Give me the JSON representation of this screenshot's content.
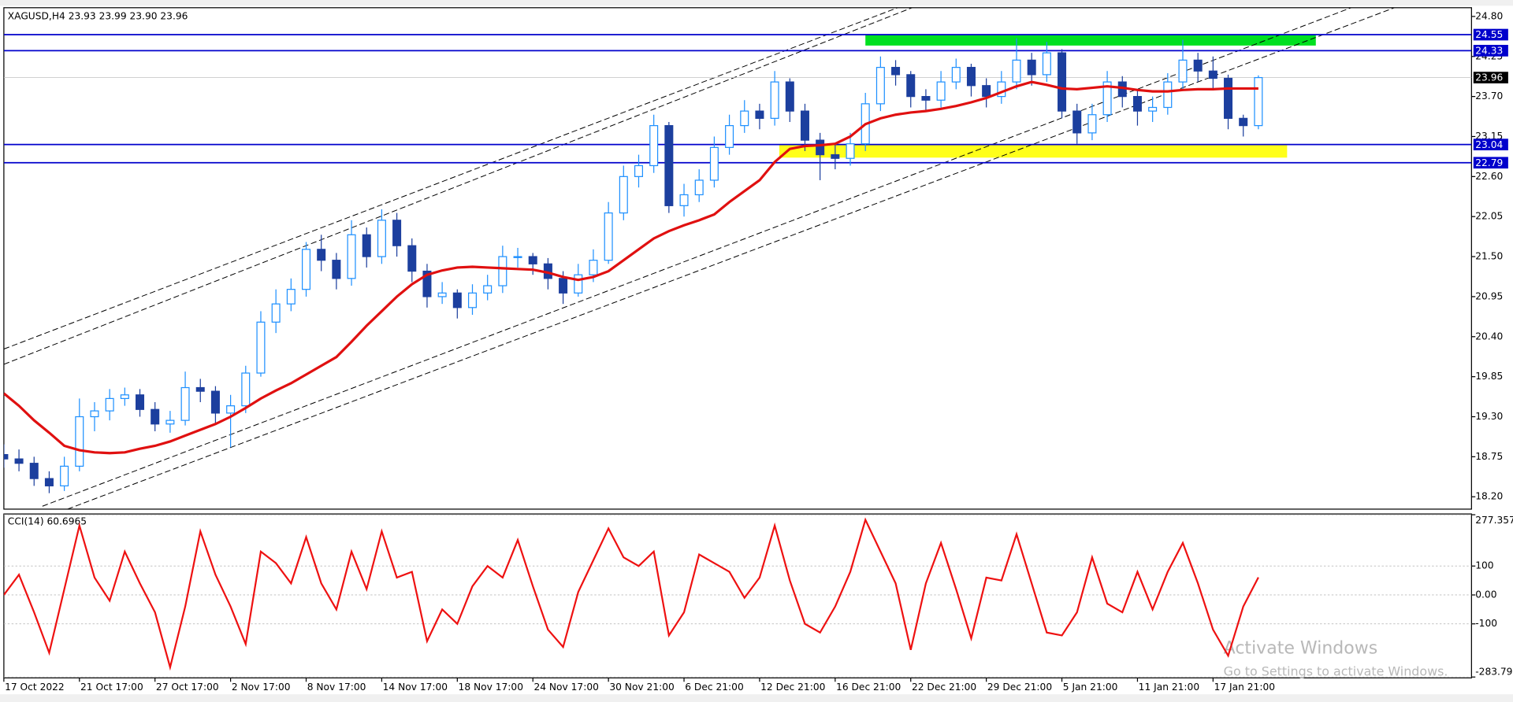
{
  "chart_data": [
    {
      "type": "candlestick",
      "title": "XAGUSD,H4  23.93 23.99 23.90 23.96",
      "up_color": "#1e90ff",
      "down_color": "#1c3f9e",
      "xlim": [
        0,
        97.1
      ],
      "ylim": [
        18.03,
        24.92
      ],
      "xticks": [
        {
          "value": 0,
          "label": "17 Oct 2022"
        },
        {
          "value": 5,
          "label": "21 Oct 17:00"
        },
        {
          "value": 10,
          "label": "27 Oct 17:00"
        },
        {
          "value": 15,
          "label": "2 Nov 17:00"
        },
        {
          "value": 20,
          "label": "8 Nov 17:00"
        },
        {
          "value": 25,
          "label": "14 Nov 17:00"
        },
        {
          "value": 30,
          "label": "18 Nov 17:00"
        },
        {
          "value": 35,
          "label": "24 Nov 17:00"
        },
        {
          "value": 40,
          "label": "30 Nov 21:00"
        },
        {
          "value": 45,
          "label": "6 Dec 21:00"
        },
        {
          "value": 50,
          "label": "12 Dec 21:00"
        },
        {
          "value": 55,
          "label": "16 Dec 21:00"
        },
        {
          "value": 60,
          "label": "22 Dec 21:00"
        },
        {
          "value": 65,
          "label": "29 Dec 21:00"
        },
        {
          "value": 70,
          "label": "5 Jan 21:00"
        },
        {
          "value": 75,
          "label": "11 Jan 21:00"
        },
        {
          "value": 80,
          "label": "17 Jan 21:00"
        }
      ],
      "yticks": [
        {
          "value": 24.8,
          "label": "24.80"
        },
        24.25,
        {
          "value": 23.7,
          "label": "23.70"
        },
        23.15,
        {
          "value": 22.6,
          "label": "22.60"
        },
        22.05,
        {
          "value": 21.5,
          "label": "21.50"
        },
        20.95,
        {
          "value": 20.4,
          "label": "20.40"
        },
        19.85,
        {
          "value": 19.3,
          "label": "19.30"
        },
        18.75,
        {
          "value": 18.2,
          "label": "18.20"
        }
      ],
      "open": [
        18.78,
        18.72,
        18.66,
        18.45,
        18.35,
        18.62,
        19.3,
        19.38,
        19.55,
        19.6,
        19.4,
        19.2,
        19.25,
        19.7,
        19.65,
        19.35,
        19.45,
        19.9,
        20.6,
        20.85,
        21.05,
        21.6,
        21.45,
        21.2,
        21.8,
        21.5,
        22.0,
        21.65,
        21.3,
        20.95,
        21.0,
        20.8,
        21.0,
        21.1,
        21.5,
        21.5,
        21.4,
        21.2,
        21.0,
        21.25,
        21.45,
        22.1,
        22.6,
        22.75,
        23.3,
        22.2,
        22.35,
        22.55,
        23.0,
        23.3,
        23.5,
        23.4,
        23.9,
        23.5,
        23.1,
        22.9,
        22.85,
        23.05,
        23.6,
        24.1,
        24.0,
        23.7,
        23.65,
        23.9,
        24.1,
        23.85,
        23.7,
        23.9,
        24.2,
        24.0,
        24.3,
        23.5,
        23.2,
        23.45,
        23.9,
        23.7,
        23.5,
        23.55,
        23.9,
        24.2,
        24.05,
        23.95,
        23.4,
        23.3
      ],
      "high": [
        18.92,
        18.85,
        18.75,
        18.55,
        18.75,
        19.55,
        19.5,
        19.68,
        19.7,
        19.68,
        19.5,
        19.38,
        19.92,
        19.82,
        19.72,
        19.6,
        20.0,
        20.75,
        21.05,
        21.2,
        21.7,
        21.8,
        21.55,
        22.0,
        21.9,
        22.15,
        22.1,
        21.75,
        21.4,
        21.15,
        21.05,
        21.12,
        21.25,
        21.65,
        21.62,
        21.55,
        21.48,
        21.3,
        21.4,
        21.6,
        22.25,
        22.75,
        22.9,
        23.45,
        23.35,
        22.5,
        22.7,
        23.15,
        23.45,
        23.65,
        23.6,
        24.05,
        23.95,
        23.6,
        23.2,
        23.05,
        23.2,
        23.75,
        24.25,
        24.2,
        24.05,
        23.8,
        24.05,
        24.22,
        24.15,
        23.95,
        24.05,
        24.5,
        24.3,
        24.45,
        24.35,
        23.6,
        23.6,
        24.05,
        23.98,
        23.78,
        23.7,
        24.02,
        24.48,
        24.3,
        24.25,
        24.0,
        23.45,
        23.99
      ],
      "low": [
        18.6,
        18.55,
        18.35,
        18.25,
        18.28,
        18.55,
        19.1,
        19.25,
        19.45,
        19.3,
        19.1,
        19.08,
        19.18,
        19.5,
        19.2,
        18.88,
        19.35,
        19.85,
        20.45,
        20.75,
        20.95,
        21.3,
        21.05,
        21.1,
        21.35,
        21.4,
        21.5,
        21.15,
        20.8,
        20.85,
        20.65,
        20.7,
        20.9,
        21.0,
        21.35,
        21.25,
        21.05,
        20.85,
        20.95,
        21.15,
        21.4,
        22.0,
        22.45,
        22.65,
        22.1,
        22.05,
        22.25,
        22.45,
        22.9,
        23.2,
        23.25,
        23.3,
        23.35,
        22.95,
        22.55,
        22.7,
        22.75,
        22.95,
        23.5,
        23.85,
        23.55,
        23.5,
        23.55,
        23.8,
        23.7,
        23.55,
        23.6,
        23.8,
        23.85,
        23.9,
        23.4,
        23.05,
        23.1,
        23.35,
        23.55,
        23.3,
        23.35,
        23.45,
        23.8,
        23.9,
        23.8,
        23.25,
        23.15,
        23.25
      ],
      "close": [
        18.72,
        18.66,
        18.45,
        18.35,
        18.62,
        19.3,
        19.38,
        19.55,
        19.6,
        19.4,
        19.2,
        19.25,
        19.7,
        19.65,
        19.35,
        19.45,
        19.9,
        20.6,
        20.85,
        21.05,
        21.6,
        21.45,
        21.2,
        21.8,
        21.5,
        22.0,
        21.65,
        21.3,
        20.95,
        21.0,
        20.8,
        21.0,
        21.1,
        21.5,
        21.5,
        21.4,
        21.2,
        21.0,
        21.25,
        21.45,
        22.1,
        22.6,
        22.75,
        23.3,
        22.2,
        22.35,
        22.55,
        23.0,
        23.3,
        23.5,
        23.4,
        23.9,
        23.5,
        23.1,
        22.9,
        22.85,
        23.05,
        23.6,
        24.1,
        24.0,
        23.7,
        23.65,
        23.9,
        24.1,
        23.85,
        23.7,
        23.9,
        24.2,
        24.0,
        24.3,
        23.5,
        23.2,
        23.45,
        23.9,
        23.7,
        23.5,
        23.55,
        23.9,
        24.2,
        24.05,
        23.95,
        23.4,
        23.3,
        23.96
      ],
      "ma_color": "#e01010",
      "ma": [
        19.62,
        19.45,
        19.25,
        19.08,
        18.9,
        18.84,
        18.81,
        18.8,
        18.81,
        18.86,
        18.9,
        18.96,
        19.04,
        19.12,
        19.2,
        19.3,
        19.42,
        19.55,
        19.66,
        19.76,
        19.88,
        20.0,
        20.12,
        20.33,
        20.55,
        20.75,
        20.95,
        21.12,
        21.25,
        21.31,
        21.35,
        21.36,
        21.35,
        21.34,
        21.33,
        21.32,
        21.28,
        21.22,
        21.18,
        21.22,
        21.3,
        21.45,
        21.6,
        21.75,
        21.85,
        21.93,
        22.0,
        22.08,
        22.25,
        22.4,
        22.55,
        22.8,
        22.98,
        23.02,
        23.03,
        23.05,
        23.15,
        23.32,
        23.4,
        23.45,
        23.48,
        23.5,
        23.53,
        23.57,
        23.62,
        23.68,
        23.76,
        23.84,
        23.9,
        23.86,
        23.81,
        23.8,
        23.82,
        23.84,
        23.82,
        23.79,
        23.77,
        23.77,
        23.79,
        23.8,
        23.8,
        23.81,
        23.81,
        23.81
      ],
      "levels_color": "#0000cc",
      "levels": [
        24.55,
        24.33,
        23.04,
        22.79
      ],
      "current_price": 23.96,
      "zones": [
        {
          "x": [
            57.0,
            86.8
          ],
          "y": [
            24.4,
            24.55
          ],
          "color": "#00e020"
        },
        {
          "x": [
            51.3,
            84.9
          ],
          "y": [
            22.86,
            23.04
          ],
          "color": "#ffff1a"
        }
      ],
      "trendlines": [
        {
          "x": [
            0,
            59.13
          ],
          "y": [
            20.23,
            24.92
          ]
        },
        {
          "x": [
            0,
            60.09
          ],
          "y": [
            20.02,
            24.92
          ]
        },
        {
          "x": [
            2.55,
            89.14
          ],
          "y": [
            18.07,
            24.92
          ]
        },
        {
          "x": [
            4.21,
            92.0
          ],
          "y": [
            18.03,
            24.92
          ]
        }
      ]
    },
    {
      "type": "line",
      "title": "CCI(14) 60.6965",
      "color": "#ee1111",
      "grid": true,
      "ylim": [
        -283.796,
        277.357
      ],
      "yticks": [
        277.357,
        100,
        {
          "value": 0,
          "label": "0.00"
        },
        -100,
        -283.796
      ],
      "values": [
        0,
        70,
        -60,
        -200,
        20,
        240,
        60,
        -20,
        150,
        40,
        -60,
        -250,
        -40,
        220,
        70,
        -40,
        -170,
        150,
        110,
        40,
        200,
        40,
        -50,
        150,
        20,
        220,
        60,
        80,
        -160,
        -50,
        -100,
        30,
        100,
        60,
        190,
        30,
        -120,
        -180,
        10,
        120,
        230,
        130,
        100,
        150,
        -140,
        -60,
        140,
        110,
        80,
        -10,
        60,
        240,
        50,
        -100,
        -130,
        -40,
        80,
        260,
        150,
        40,
        -190,
        40,
        180,
        20,
        -150,
        60,
        50,
        210,
        40,
        -130,
        -140,
        -60,
        130,
        -30,
        -60,
        80,
        -50,
        80,
        180,
        40,
        -120,
        -210,
        -40,
        60.6965
      ]
    }
  ],
  "watermark": {
    "title": "Activate Windows",
    "subtitle": "Go to Settings to activate Windows."
  }
}
